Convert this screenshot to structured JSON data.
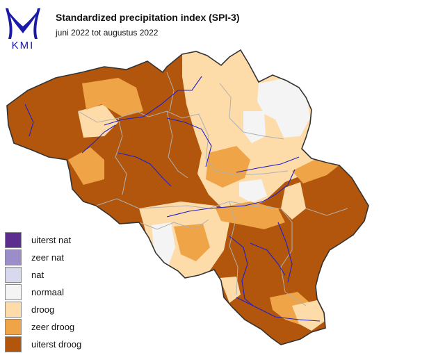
{
  "header": {
    "title": "Standardized precipitation index (SPI-3)",
    "subtitle": "juni 2022 tot augustus 2022"
  },
  "logo": {
    "text": "KMI",
    "color": "#1a1aa6"
  },
  "legend": {
    "items": [
      {
        "label": "uiterst nat",
        "color": "#5b2d8e"
      },
      {
        "label": "zeer nat",
        "color": "#9b8dc8"
      },
      {
        "label": "nat",
        "color": "#d9d9ee"
      },
      {
        "label": "normaal",
        "color": "#f4f4f4"
      },
      {
        "label": "droog",
        "color": "#fddcaa"
      },
      {
        "label": "zeer droog",
        "color": "#eea447"
      },
      {
        "label": "uiterst droog",
        "color": "#b1560c"
      }
    ]
  },
  "map": {
    "border_color": "#333333",
    "province_border_color": "#b0b0b0",
    "river_color": "#1f1fcc",
    "dominant_class": "uiterst droog"
  }
}
